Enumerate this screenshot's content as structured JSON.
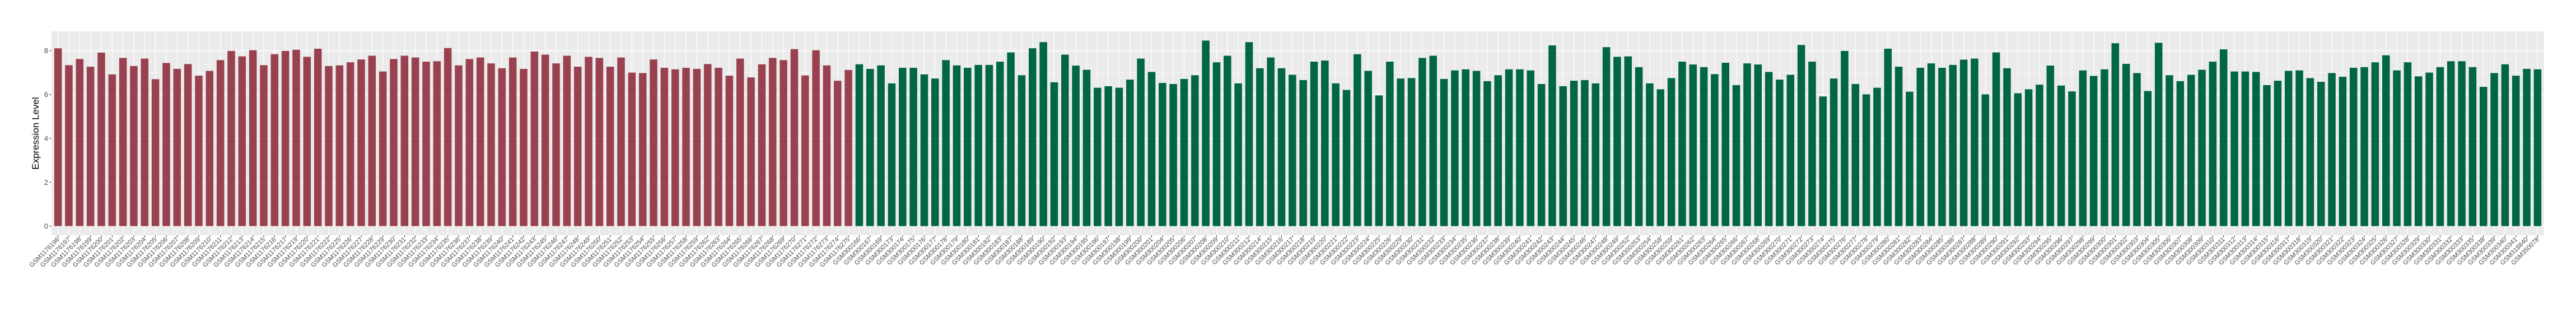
{
  "chart_data": {
    "type": "bar",
    "title": "",
    "xlabel": "",
    "ylabel": "Expression Level",
    "ylim": [
      -0.42,
      8.88
    ],
    "yticks": [
      0,
      2,
      4,
      6,
      8
    ],
    "grid": true,
    "legend": "none",
    "panel_background": "#EBEBEB",
    "series": [
      {
        "color": "#9A4150",
        "categories": [
          "GSM1176196",
          "GSM1176197",
          "GSM1176198",
          "GSM1176199",
          "GSM1176200",
          "GSM1176201",
          "GSM1176202",
          "GSM1176203",
          "GSM1176204",
          "GSM1176205",
          "GSM1176206",
          "GSM1176207",
          "GSM1176208",
          "GSM1176209",
          "GSM1176210",
          "GSM1176211",
          "GSM1176212",
          "GSM1176213",
          "GSM1176214",
          "GSM1176215",
          "GSM1176216",
          "GSM1176217",
          "GSM1176219",
          "GSM1176220",
          "GSM1176221",
          "GSM1176222",
          "GSM1176225",
          "GSM1176226",
          "GSM1176227",
          "GSM1176228",
          "GSM1176229",
          "GSM1176230",
          "GSM1176231",
          "GSM1176232",
          "GSM1176233",
          "GSM1176234",
          "GSM1176235",
          "GSM1176236",
          "GSM1176237",
          "GSM1176238",
          "GSM1176239",
          "GSM1176240",
          "GSM1176241",
          "GSM1176242",
          "GSM1176243",
          "GSM1176245",
          "GSM1176246",
          "GSM1176247",
          "GSM1176248",
          "GSM1176249",
          "GSM1176250",
          "GSM1176251",
          "GSM1176252",
          "GSM1176253",
          "GSM1176254",
          "GSM1176255",
          "GSM1176256",
          "GSM1176257",
          "GSM1176258",
          "GSM1176259",
          "GSM1176262",
          "GSM1176263",
          "GSM1176264",
          "GSM1176265",
          "GSM1176266",
          "GSM1176267",
          "GSM1176268",
          "GSM1176269",
          "GSM1176270",
          "GSM1176271",
          "GSM1176272",
          "GSM1176273",
          "GSM1176274",
          "GSM1176275"
        ],
        "values": [
          8.11,
          7.34,
          7.62,
          7.27,
          7.91,
          6.92,
          7.67,
          7.3,
          7.64,
          6.7,
          7.44,
          7.17,
          7.39,
          6.86,
          7.08,
          7.57,
          7.99,
          7.74,
          8.02,
          7.34,
          7.84,
          7.99,
          8.04,
          7.72,
          8.09,
          7.3,
          7.33,
          7.47,
          7.6,
          7.77,
          7.05,
          7.62,
          7.77,
          7.69,
          7.5,
          7.52,
          8.12,
          7.33,
          7.62,
          7.69,
          7.42,
          7.2,
          7.69,
          7.17,
          7.96,
          7.82,
          7.42,
          7.77,
          7.27,
          7.72,
          7.67,
          7.27,
          7.69,
          7.0,
          6.98,
          7.6,
          7.22,
          7.15,
          7.22,
          7.17,
          7.39,
          7.22,
          6.86,
          7.64,
          6.78,
          7.38,
          7.67,
          7.57,
          8.07,
          6.87,
          8.02,
          7.33,
          6.63,
          7.12
        ]
      },
      {
        "color": "#006644",
        "categories": [
          "GSM300166",
          "GSM300167",
          "GSM300169",
          "GSM300173",
          "GSM300174",
          "GSM300175",
          "GSM300176",
          "GSM300177",
          "GSM300178",
          "GSM300179",
          "GSM300180",
          "GSM300181",
          "GSM300182",
          "GSM300183",
          "GSM300187",
          "GSM300188",
          "GSM300189",
          "GSM300190",
          "GSM300192",
          "GSM300193",
          "GSM300194",
          "GSM300195",
          "GSM300196",
          "GSM300197",
          "GSM300198",
          "GSM300199",
          "GSM300200",
          "GSM300201",
          "GSM300204",
          "GSM300205",
          "GSM300206",
          "GSM300207",
          "GSM300208",
          "GSM300209",
          "GSM300210",
          "GSM300211",
          "GSM300212",
          "GSM300214",
          "GSM300215",
          "GSM300216",
          "GSM300217",
          "GSM300218",
          "GSM300219",
          "GSM300220",
          "GSM300221",
          "GSM300222",
          "GSM300223",
          "GSM300224",
          "GSM300225",
          "GSM300226",
          "GSM300229",
          "GSM300230",
          "GSM300231",
          "GSM300232",
          "GSM300233",
          "GSM300234",
          "GSM300235",
          "GSM300236",
          "GSM300237",
          "GSM300238",
          "GSM300239",
          "GSM300240",
          "GSM300241",
          "GSM300242",
          "GSM300243",
          "GSM300244",
          "GSM300245",
          "GSM300246",
          "GSM300247",
          "GSM300248",
          "GSM300249",
          "GSM300252",
          "GSM300253",
          "GSM300254",
          "GSM300258",
          "GSM300259",
          "GSM300261",
          "GSM300262",
          "GSM300263",
          "GSM300264",
          "GSM300265",
          "GSM300266",
          "GSM300267",
          "GSM300268",
          "GSM300269",
          "GSM300270",
          "GSM300271",
          "GSM300272",
          "GSM300273",
          "GSM300274",
          "GSM300275",
          "GSM300276",
          "GSM300277",
          "GSM300278",
          "GSM300279",
          "GSM300280",
          "GSM300281",
          "GSM300282",
          "GSM300283",
          "GSM300284",
          "GSM300285",
          "GSM300286",
          "GSM300287",
          "GSM300288",
          "GSM300289",
          "GSM300290",
          "GSM300291",
          "GSM300292",
          "GSM300293",
          "GSM300294",
          "GSM300295",
          "GSM300296",
          "GSM300297",
          "GSM300298",
          "GSM300299",
          "GSM300300",
          "GSM300301",
          "GSM300302",
          "GSM300303",
          "GSM300304",
          "GSM300305",
          "GSM300306",
          "GSM300307",
          "GSM300308",
          "GSM300309",
          "GSM300310",
          "GSM300311",
          "GSM300312",
          "GSM300313",
          "GSM300314",
          "GSM300315",
          "GSM300316",
          "GSM300317",
          "GSM300318",
          "GSM300319",
          "GSM300320",
          "GSM300321",
          "GSM300322",
          "GSM300323",
          "GSM300324",
          "GSM300325",
          "GSM300326",
          "GSM300327",
          "GSM300328",
          "GSM300329",
          "GSM300330",
          "GSM300331",
          "GSM300332",
          "GSM300333",
          "GSM300335",
          "GSM300338",
          "GSM300339",
          "GSM300340",
          "GSM300341",
          "GSM318840",
          "GSM350078"
        ],
        "values": [
          7.38,
          7.17,
          7.33,
          6.51,
          7.22,
          7.22,
          6.92,
          6.73,
          7.57,
          7.33,
          7.22,
          7.35,
          7.35,
          7.5,
          7.92,
          6.88,
          8.11,
          8.39,
          6.56,
          7.82,
          7.32,
          7.13,
          6.31,
          6.38,
          6.31,
          6.68,
          7.64,
          7.03,
          6.53,
          6.48,
          6.71,
          6.88,
          8.46,
          7.47,
          7.77,
          6.51,
          8.39,
          7.2,
          7.69,
          7.2,
          6.9,
          6.66,
          7.5,
          7.55,
          6.51,
          6.21,
          7.84,
          7.08,
          5.96,
          7.5,
          6.73,
          6.75,
          7.67,
          7.77,
          6.71,
          7.1,
          7.15,
          7.08,
          6.61,
          6.88,
          7.15,
          7.15,
          7.1,
          6.48,
          8.24,
          6.38,
          6.63,
          6.66,
          6.51,
          8.16,
          7.72,
          7.74,
          7.25,
          6.51,
          6.24,
          6.75,
          7.5,
          7.37,
          7.25,
          6.93,
          7.45,
          6.43,
          7.42,
          7.37,
          7.03,
          6.68,
          6.9,
          8.26,
          7.5,
          5.91,
          6.73,
          7.99,
          6.48,
          6.01,
          6.31,
          8.09,
          7.27,
          6.13,
          7.22,
          7.42,
          7.22,
          7.35,
          7.59,
          7.64,
          6.01,
          7.92,
          7.2,
          6.06,
          6.24,
          6.45,
          7.32,
          6.41,
          6.14,
          7.1,
          6.85,
          7.15,
          8.34,
          7.4,
          6.98,
          6.16,
          8.36,
          6.88,
          6.61,
          6.9,
          7.13,
          7.5,
          8.06,
          7.05,
          7.05,
          7.03,
          6.43,
          6.63,
          7.08,
          7.1,
          6.75,
          6.58,
          6.98,
          6.81,
          7.22,
          7.25,
          7.47,
          7.79,
          7.1,
          7.47,
          6.83,
          7.0,
          7.25,
          7.52,
          7.52,
          7.25,
          6.35,
          6.98,
          7.38,
          6.86,
          7.17,
          7.15
        ]
      }
    ]
  }
}
